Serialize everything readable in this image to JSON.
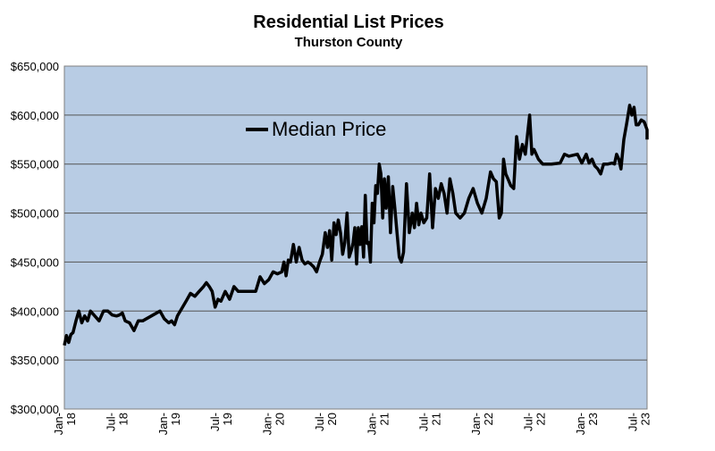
{
  "chart_data": {
    "type": "line",
    "title": "Residential List Prices",
    "subtitle": "Thurston County",
    "xlabel": "",
    "ylabel": "",
    "ylim": [
      300000,
      650000
    ],
    "y_ticks": [
      300000,
      350000,
      400000,
      450000,
      500000,
      550000,
      600000,
      650000
    ],
    "y_tick_labels": [
      "$300,000",
      "$350,000",
      "$400,000",
      "$450,000",
      "$500,000",
      "$550,000",
      "$600,000",
      "$650,000"
    ],
    "x_tick_labels": [
      "Jan-18",
      "Jul-18",
      "Jan-19",
      "Jul-19",
      "Jan-20",
      "Jul-20",
      "Jan-21",
      "Jul-21",
      "Jan-22",
      "Jul-22",
      "Jan-23",
      "Jul-23"
    ],
    "grid": true,
    "legend": "upper-center",
    "colors": {
      "plot_bg": "#b8cce4",
      "line": "#000000",
      "grid": "#555555",
      "frame": "#808080"
    },
    "series": [
      {
        "name": "Median Price",
        "points": [
          [
            "Jan-18",
            365000
          ],
          [
            "Jan-18",
            375000
          ],
          [
            "Jan-18",
            368000
          ],
          [
            "Jan-18",
            376000
          ],
          [
            "Feb-18",
            378000
          ],
          [
            "Feb-18",
            390000
          ],
          [
            "Feb-18",
            400000
          ],
          [
            "Mar-18",
            388000
          ],
          [
            "Mar-18",
            395000
          ],
          [
            "Mar-18",
            390000
          ],
          [
            "Apr-18",
            400000
          ],
          [
            "Apr-18",
            395000
          ],
          [
            "May-18",
            390000
          ],
          [
            "May-18",
            400000
          ],
          [
            "Jun-18",
            400000
          ],
          [
            "Jun-18",
            396000
          ],
          [
            "Jul-18",
            395000
          ],
          [
            "Jul-18",
            396000
          ],
          [
            "Jul-18",
            398000
          ],
          [
            "Aug-18",
            390000
          ],
          [
            "Aug-18",
            388000
          ],
          [
            "Sep-18",
            380000
          ],
          [
            "Sep-18",
            390000
          ],
          [
            "Oct-18",
            390000
          ],
          [
            "Nov-18",
            395000
          ],
          [
            "Dec-18",
            400000
          ],
          [
            "Dec-18",
            392000
          ],
          [
            "Jan-19",
            388000
          ],
          [
            "Jan-19",
            390000
          ],
          [
            "Jan-19",
            386000
          ],
          [
            "Feb-19",
            395000
          ],
          [
            "Mar-19",
            410000
          ],
          [
            "Mar-19",
            418000
          ],
          [
            "Apr-19",
            415000
          ],
          [
            "Apr-19",
            420000
          ],
          [
            "May-19",
            425000
          ],
          [
            "May-19",
            429000
          ],
          [
            "May-19",
            425000
          ],
          [
            "Jun-19",
            420000
          ],
          [
            "Jun-19",
            404000
          ],
          [
            "Jun-19",
            412000
          ],
          [
            "Jul-19",
            410000
          ],
          [
            "Jul-19",
            420000
          ],
          [
            "Aug-19",
            412000
          ],
          [
            "Aug-19",
            425000
          ],
          [
            "Sep-19",
            420000
          ],
          [
            "Oct-19",
            420000
          ],
          [
            "Nov-19",
            420000
          ],
          [
            "Nov-19",
            435000
          ],
          [
            "Dec-19",
            428000
          ],
          [
            "Dec-19",
            432000
          ],
          [
            "Jan-20",
            440000
          ],
          [
            "Jan-20",
            438000
          ],
          [
            "Feb-20",
            440000
          ],
          [
            "Feb-20",
            450000
          ],
          [
            "Feb-20",
            436000
          ],
          [
            "Feb-20",
            452000
          ],
          [
            "Mar-20",
            450000
          ],
          [
            "Mar-20",
            468000
          ],
          [
            "Mar-20",
            450000
          ],
          [
            "Apr-20",
            465000
          ],
          [
            "Apr-20",
            452000
          ],
          [
            "Apr-20",
            448000
          ],
          [
            "May-20",
            450000
          ],
          [
            "May-20",
            448000
          ],
          [
            "May-20",
            445000
          ],
          [
            "Jun-20",
            440000
          ],
          [
            "Jun-20",
            450000
          ],
          [
            "Jun-20",
            458000
          ],
          [
            "Jul-20",
            480000
          ],
          [
            "Jul-20",
            465000
          ],
          [
            "Jul-20",
            482000
          ],
          [
            "Jul-20",
            452000
          ],
          [
            "Aug-20",
            490000
          ],
          [
            "Aug-20",
            478000
          ],
          [
            "Aug-20",
            493000
          ],
          [
            "Aug-20",
            480000
          ],
          [
            "Sep-20",
            458000
          ],
          [
            "Sep-20",
            470000
          ],
          [
            "Sep-20",
            500000
          ],
          [
            "Sep-20",
            455000
          ],
          [
            "Oct-20",
            462000
          ],
          [
            "Oct-20",
            470000
          ],
          [
            "Oct-20",
            485000
          ],
          [
            "Oct-20",
            448000
          ],
          [
            "Oct-20",
            485000
          ],
          [
            "Nov-20",
            468000
          ],
          [
            "Nov-20",
            486000
          ],
          [
            "Nov-20",
            455000
          ],
          [
            "Nov-20",
            518000
          ],
          [
            "Nov-20",
            469000
          ],
          [
            "Dec-20",
            470000
          ],
          [
            "Dec-20",
            450000
          ],
          [
            "Dec-20",
            510000
          ],
          [
            "Dec-20",
            490000
          ],
          [
            "Dec-20",
            528000
          ],
          [
            "Jan-21",
            520000
          ],
          [
            "Jan-21",
            550000
          ],
          [
            "Jan-21",
            540000
          ],
          [
            "Jan-21",
            495000
          ],
          [
            "Jan-21",
            535000
          ],
          [
            "Feb-21",
            505000
          ],
          [
            "Feb-21",
            537000
          ],
          [
            "Feb-21",
            480000
          ],
          [
            "Feb-21",
            527000
          ],
          [
            "Mar-21",
            505000
          ],
          [
            "Mar-21",
            480000
          ],
          [
            "Mar-21",
            455000
          ],
          [
            "Mar-21",
            450000
          ],
          [
            "Apr-21",
            460000
          ],
          [
            "Apr-21",
            530000
          ],
          [
            "Apr-21",
            480000
          ],
          [
            "May-21",
            500000
          ],
          [
            "May-21",
            485000
          ],
          [
            "May-21",
            510000
          ],
          [
            "May-21",
            488000
          ],
          [
            "Jun-21",
            500000
          ],
          [
            "Jun-21",
            490000
          ],
          [
            "Jun-21",
            495000
          ],
          [
            "Jul-21",
            540000
          ],
          [
            "Jul-21",
            485000
          ],
          [
            "Jul-21",
            525000
          ],
          [
            "Aug-21",
            515000
          ],
          [
            "Aug-21",
            530000
          ],
          [
            "Aug-21",
            520000
          ],
          [
            "Sep-21",
            500000
          ],
          [
            "Sep-21",
            535000
          ],
          [
            "Sep-21",
            520000
          ],
          [
            "Oct-21",
            500000
          ],
          [
            "Oct-21",
            495000
          ],
          [
            "Nov-21",
            500000
          ],
          [
            "Nov-21",
            515000
          ],
          [
            "Dec-21",
            525000
          ],
          [
            "Dec-21",
            510000
          ],
          [
            "Jan-22",
            500000
          ],
          [
            "Jan-22",
            515000
          ],
          [
            "Feb-22",
            542000
          ],
          [
            "Feb-22",
            535000
          ],
          [
            "Feb-22",
            532000
          ],
          [
            "Mar-22",
            495000
          ],
          [
            "Mar-22",
            500000
          ],
          [
            "Mar-22",
            555000
          ],
          [
            "Mar-22",
            540000
          ],
          [
            "Apr-22",
            535000
          ],
          [
            "Apr-22",
            528000
          ],
          [
            "Apr-22",
            525000
          ],
          [
            "May-22",
            578000
          ],
          [
            "May-22",
            555000
          ],
          [
            "May-22",
            570000
          ],
          [
            "Jun-22",
            560000
          ],
          [
            "Jun-22",
            580000
          ],
          [
            "Jun-22",
            600000
          ],
          [
            "Jun-22",
            560000
          ],
          [
            "Jul-22",
            565000
          ],
          [
            "Jul-22",
            555000
          ],
          [
            "Aug-22",
            550000
          ],
          [
            "Sep-22",
            550000
          ],
          [
            "Oct-22",
            551000
          ],
          [
            "Oct-22",
            560000
          ],
          [
            "Nov-22",
            558000
          ],
          [
            "Dec-22",
            560000
          ],
          [
            "Dec-22",
            551000
          ],
          [
            "Jan-23",
            560000
          ],
          [
            "Jan-23",
            551000
          ],
          [
            "Jan-23",
            555000
          ],
          [
            "Feb-23",
            548000
          ],
          [
            "Feb-23",
            545000
          ],
          [
            "Feb-23",
            540000
          ],
          [
            "Mar-23",
            550000
          ],
          [
            "Mar-23",
            550000
          ],
          [
            "Apr-23",
            551000
          ],
          [
            "Apr-23",
            550000
          ],
          [
            "Apr-23",
            560000
          ],
          [
            "Apr-23",
            555000
          ],
          [
            "May-23",
            545000
          ],
          [
            "May-23",
            575000
          ],
          [
            "May-23",
            592000
          ],
          [
            "Jun-23",
            610000
          ],
          [
            "Jun-23",
            600000
          ],
          [
            "Jun-23",
            608000
          ],
          [
            "Jun-23",
            590000
          ],
          [
            "Jul-23",
            590000
          ],
          [
            "Jul-23",
            595000
          ],
          [
            "Jul-23",
            593000
          ],
          [
            "Aug-23",
            585000
          ],
          [
            "Aug-23",
            575000
          ]
        ]
      }
    ]
  }
}
